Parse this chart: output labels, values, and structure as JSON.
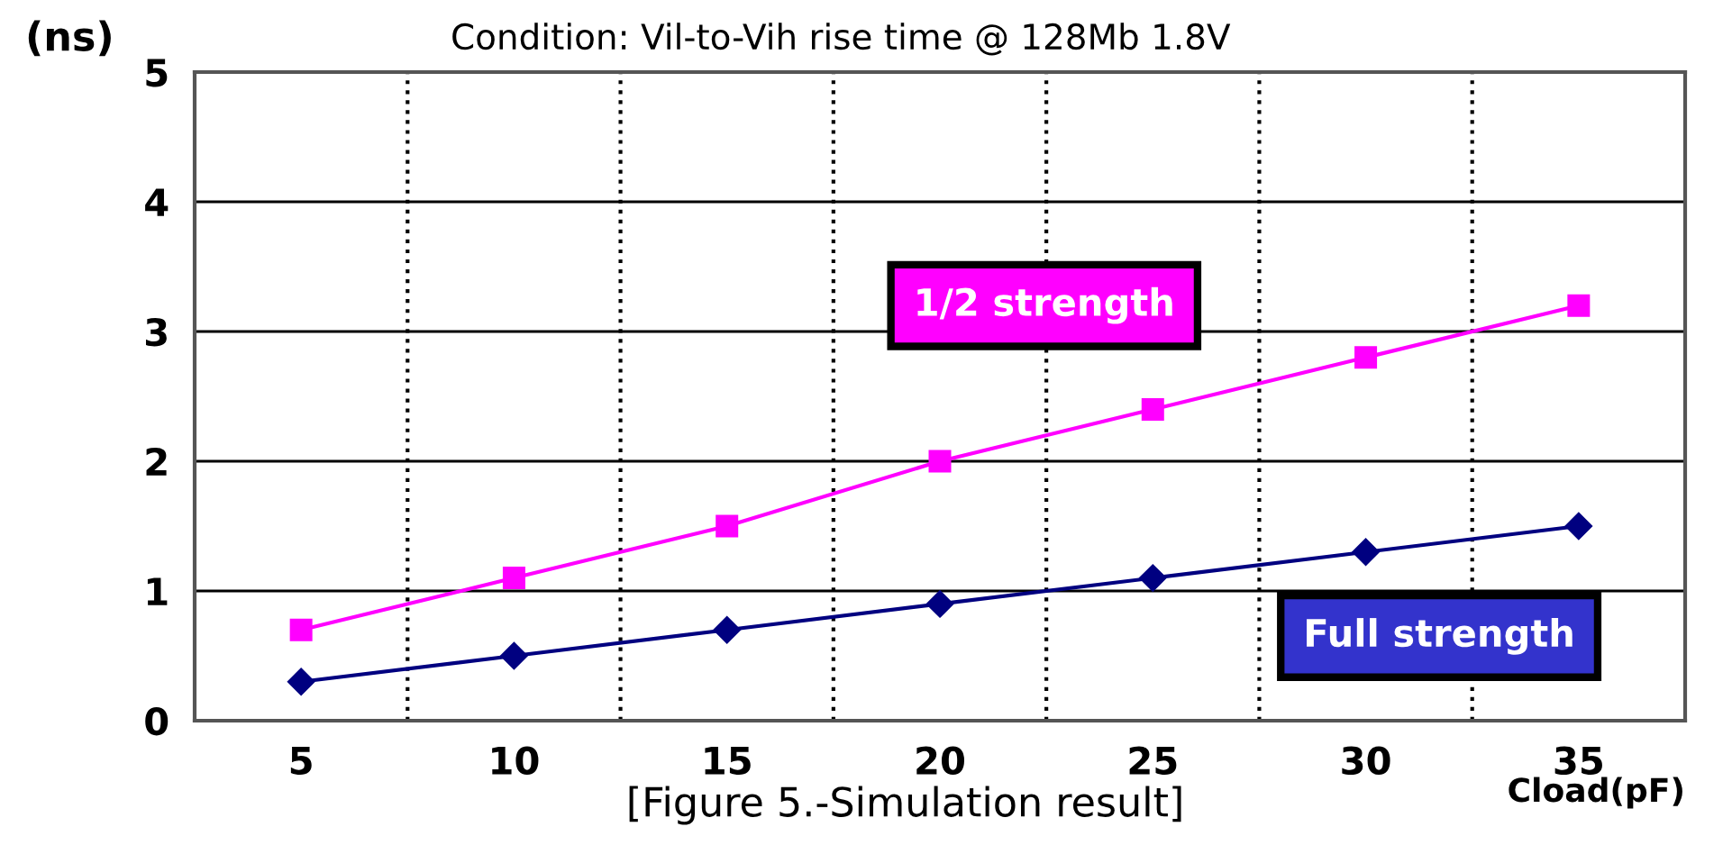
{
  "chart_data": {
    "type": "line",
    "title": "Condition: Vil-to-Vih rise time @ 128Mb 1.8V",
    "ylabel": "(ns)",
    "xlabel": "Cload(pF)",
    "annotations": [
      "[Figure 5.-Simulation result]"
    ],
    "x": [
      5,
      10,
      15,
      20,
      25,
      30,
      35
    ],
    "series": [
      {
        "name": "1/2 strength",
        "color": "#ff00ff",
        "marker": "square",
        "values": [
          0.7,
          1.1,
          1.5,
          2.0,
          2.4,
          2.8,
          3.2
        ]
      },
      {
        "name": "Full strength",
        "color": "#000080",
        "marker": "diamond",
        "values": [
          0.3,
          0.5,
          0.7,
          0.9,
          1.1,
          1.3,
          1.5
        ]
      }
    ],
    "xlim": [
      2.5,
      37.5
    ],
    "xticks": [
      5,
      10,
      15,
      20,
      25,
      30,
      35
    ],
    "ylim": [
      0,
      5
    ],
    "yticks": [
      0,
      1,
      2,
      3,
      4,
      5
    ],
    "grid": "y",
    "ref_lines": [
      {
        "axis": "x",
        "value": 7.5,
        "color": "#000000",
        "line_style": "dotted"
      },
      {
        "axis": "x",
        "value": 12.5,
        "color": "#000000",
        "line_style": "dotted"
      },
      {
        "axis": "x",
        "value": 17.5,
        "color": "#000000",
        "line_style": "dotted"
      },
      {
        "axis": "x",
        "value": 22.5,
        "color": "#000000",
        "line_style": "dotted"
      },
      {
        "axis": "x",
        "value": 27.5,
        "color": "#000000",
        "line_style": "dotted"
      },
      {
        "axis": "x",
        "value": 32.5,
        "color": "#000000",
        "line_style": "dotted"
      }
    ],
    "line_style": "solid"
  }
}
